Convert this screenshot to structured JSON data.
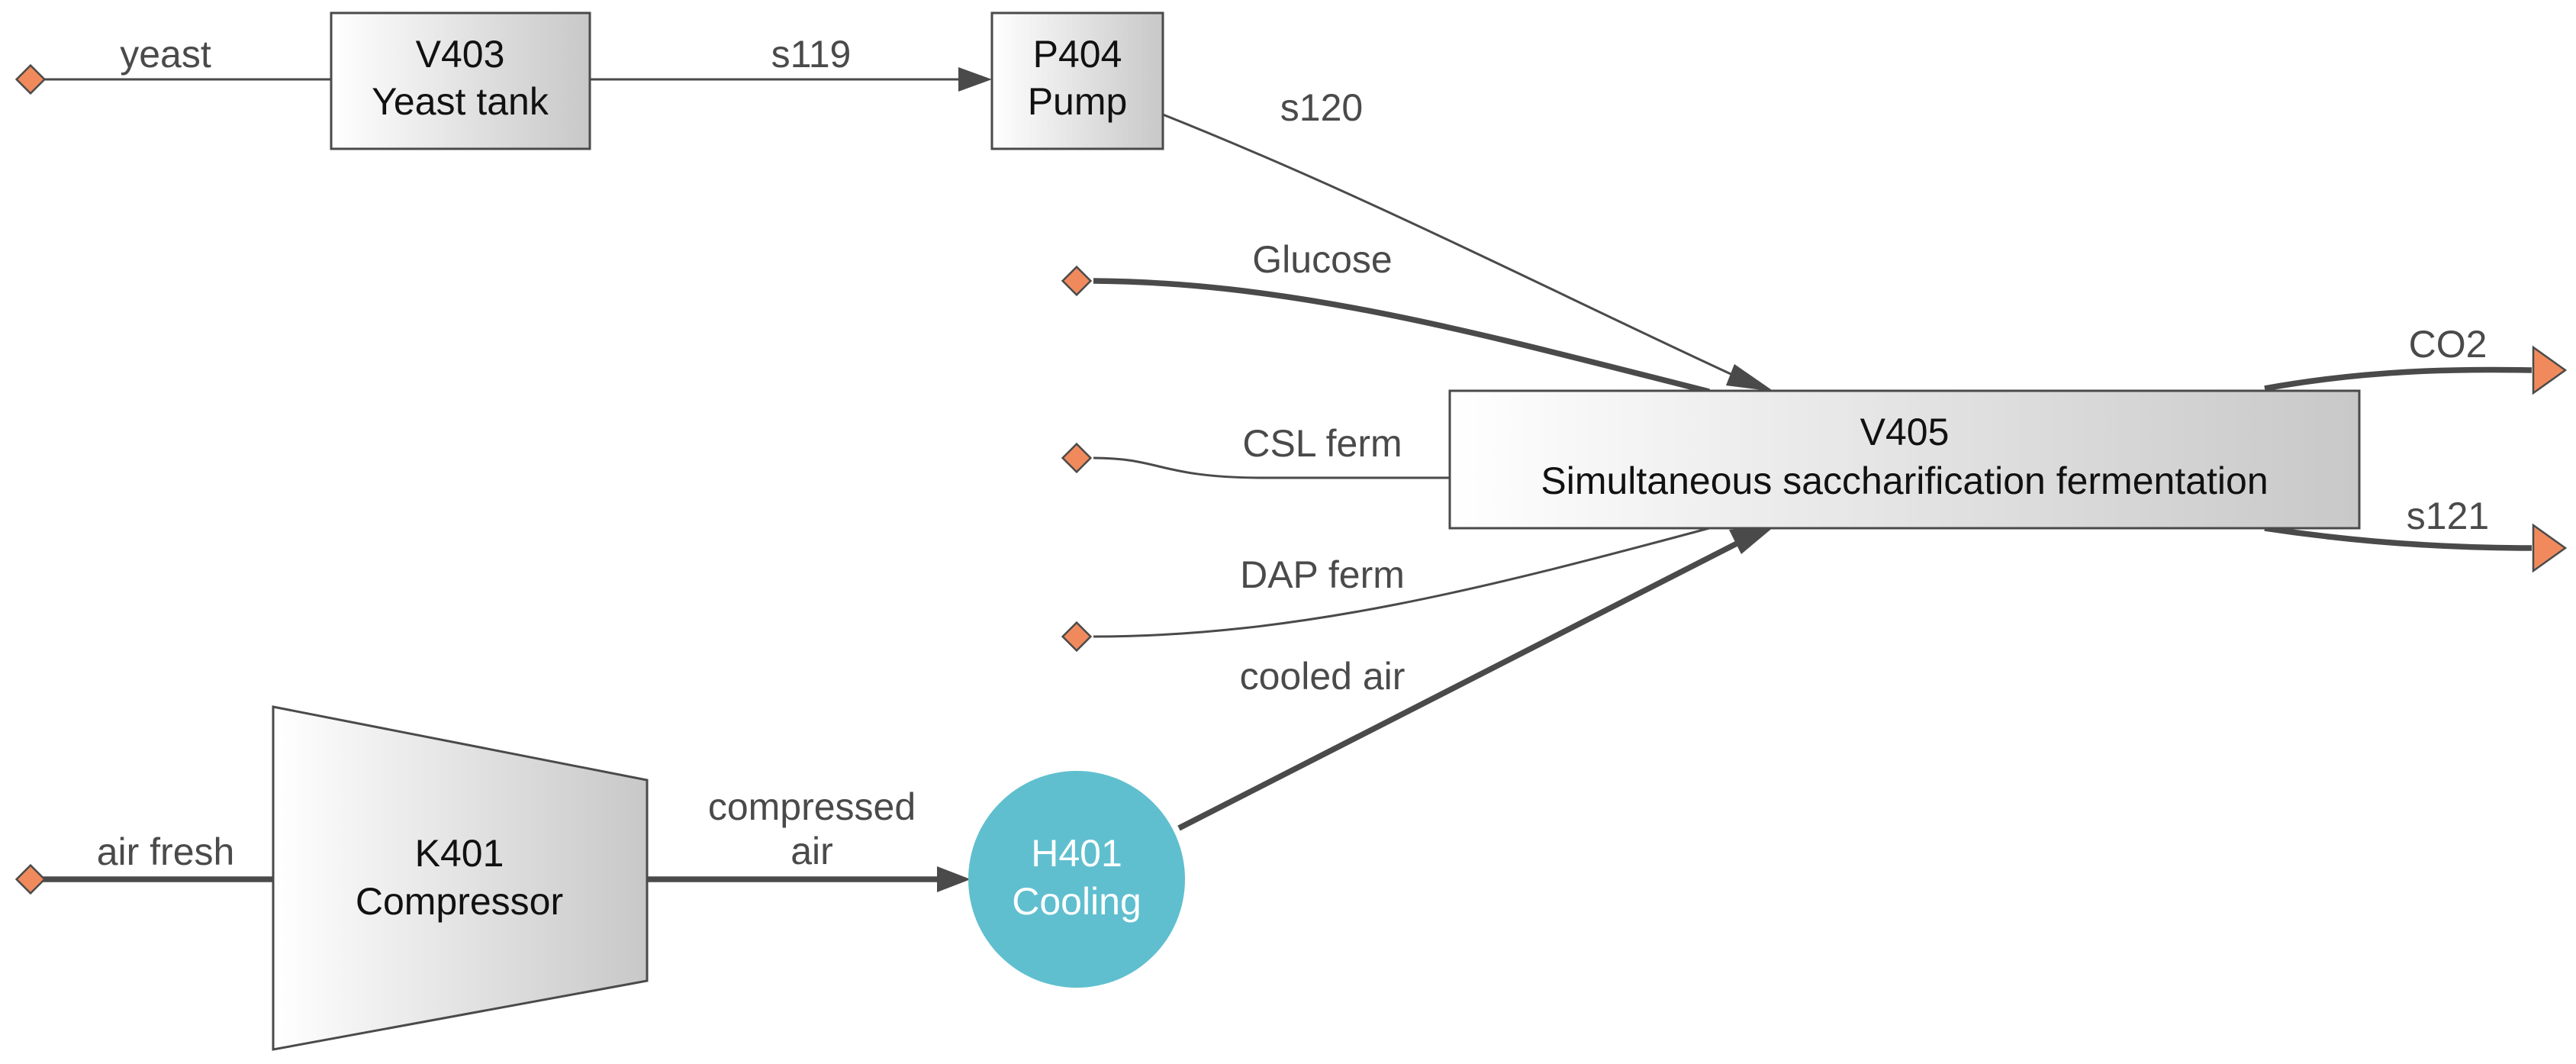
{
  "units": {
    "yeast_tank": {
      "id": "V403",
      "name": "Yeast tank"
    },
    "pump": {
      "id": "P404",
      "name": "Pump"
    },
    "fermenter": {
      "id": "V405",
      "name": "Simultaneous saccharification fermentation"
    },
    "compressor": {
      "id": "K401",
      "name": "Compressor"
    },
    "cooling": {
      "id": "H401",
      "name": "Cooling"
    }
  },
  "streams": {
    "yeast": "yeast",
    "s119": "s119",
    "s120": "s120",
    "glucose": "Glucose",
    "csl_ferm": "CSL ferm",
    "dap_ferm": "DAP ferm",
    "cooled_air": "cooled air",
    "air_fresh": "air fresh",
    "compressed_air_1": "compressed",
    "compressed_air_2": "air",
    "co2": "CO2",
    "s121": "s121"
  },
  "colors": {
    "source_marker": "#f08a5d",
    "cooling_unit": "#5fbfcf",
    "stream_line": "#4a4a4a"
  }
}
